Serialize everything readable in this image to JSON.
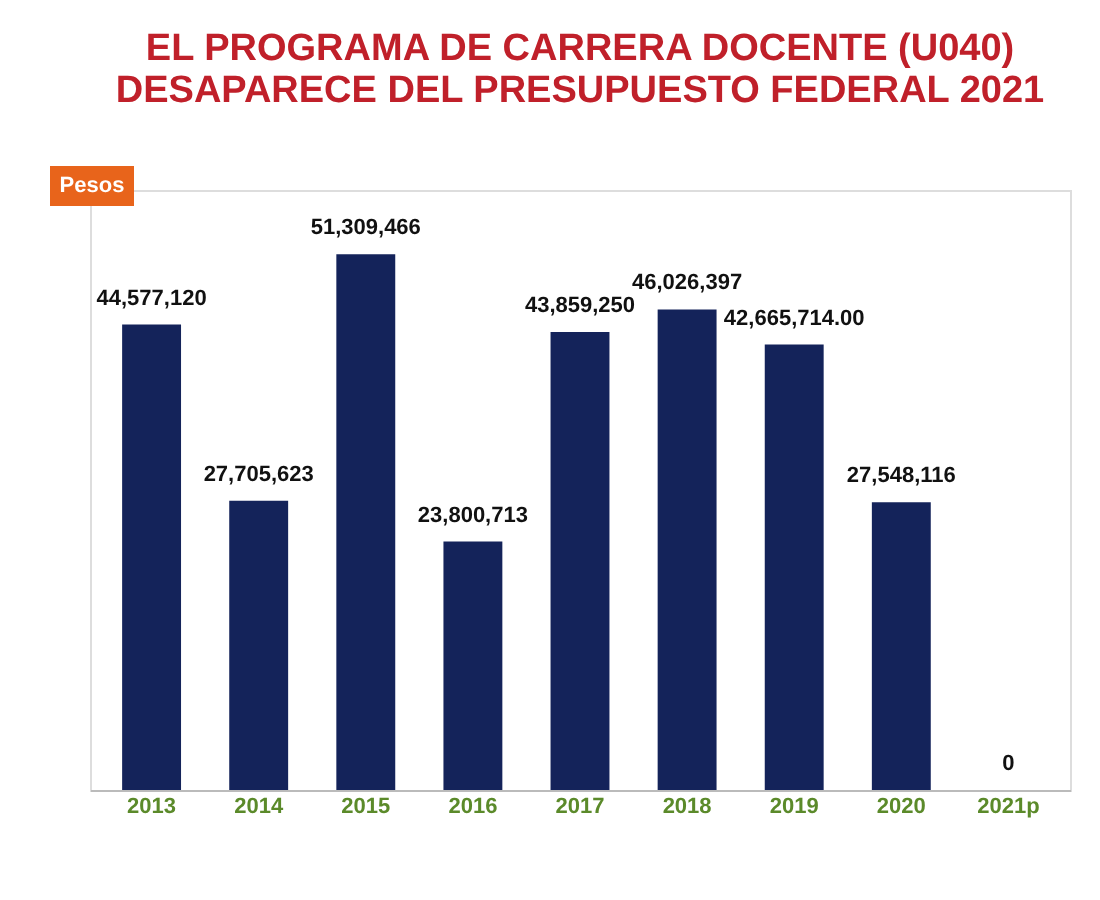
{
  "chart_data": {
    "type": "bar",
    "title": "EL PROGRAMA DE CARRERA DOCENTE (U040)\nDESAPARECE DEL PRESUPUESTO FEDERAL 2021",
    "ylabel": "Pesos",
    "categories": [
      "2013",
      "2014",
      "2015",
      "2016",
      "2017",
      "2018",
      "2019",
      "2020",
      "2021p"
    ],
    "values": [
      44577120,
      27705623,
      51309466,
      23800713,
      43859250,
      46026397,
      42665714,
      27548116,
      0
    ],
    "value_labels": [
      "44,577,120",
      "27,705,623",
      "51,309,466",
      "23,800,713",
      "43,859,250",
      "46,026,397",
      "42,665,714.00",
      "27,548,116",
      "0"
    ],
    "color": "#14235a"
  }
}
